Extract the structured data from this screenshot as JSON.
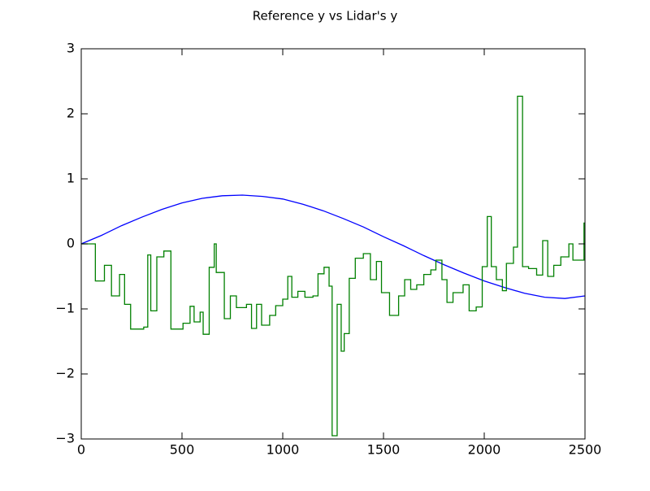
{
  "chart_data": {
    "type": "line",
    "title": "Reference y vs Lidar's y",
    "xlim": [
      0,
      2500
    ],
    "xticks": [
      0,
      500,
      1000,
      1500,
      2000,
      2500
    ],
    "ylim": [
      -3,
      3
    ],
    "yticks": [
      {
        "value": -3,
        "label": "−3"
      },
      {
        "value": -2,
        "label": "−2"
      },
      {
        "value": -1,
        "label": "−1"
      },
      0,
      1,
      2,
      3
    ],
    "grid": false,
    "series": [
      {
        "color": "#0000ff",
        "drawstyle": "default",
        "x": [
          0,
          100,
          200,
          300,
          400,
          500,
          600,
          700,
          800,
          900,
          1000,
          1100,
          1200,
          1300,
          1400,
          1500,
          1600,
          1700,
          1800,
          1900,
          2000,
          2100,
          2200,
          2300,
          2400,
          2500
        ],
        "values": [
          0.0,
          0.13,
          0.28,
          0.41,
          0.53,
          0.63,
          0.7,
          0.74,
          0.75,
          0.73,
          0.69,
          0.61,
          0.51,
          0.39,
          0.26,
          0.11,
          -0.03,
          -0.18,
          -0.32,
          -0.45,
          -0.57,
          -0.67,
          -0.76,
          -0.82,
          -0.84,
          -0.8
        ]
      },
      {
        "color": "#008000",
        "drawstyle": "steps-post",
        "x": [
          0,
          70,
          115,
          150,
          190,
          215,
          245,
          310,
          330,
          345,
          375,
          410,
          445,
          505,
          540,
          560,
          590,
          605,
          635,
          660,
          670,
          710,
          740,
          770,
          820,
          845,
          870,
          895,
          935,
          965,
          1000,
          1025,
          1045,
          1075,
          1110,
          1150,
          1175,
          1205,
          1230,
          1245,
          1270,
          1290,
          1305,
          1330,
          1360,
          1400,
          1435,
          1465,
          1490,
          1530,
          1575,
          1605,
          1635,
          1665,
          1700,
          1735,
          1760,
          1790,
          1815,
          1845,
          1895,
          1925,
          1960,
          1990,
          2015,
          2035,
          2060,
          2090,
          2110,
          2145,
          2165,
          2190,
          2220,
          2260,
          2290,
          2315,
          2345,
          2380,
          2420,
          2440,
          2495,
          2500
        ],
        "values": [
          0.0,
          -0.57,
          -0.33,
          -0.8,
          -0.47,
          -0.93,
          -1.31,
          -1.28,
          -0.17,
          -1.03,
          -0.2,
          -0.11,
          -1.31,
          -1.22,
          -0.96,
          -1.2,
          -1.05,
          -1.39,
          -0.36,
          0.0,
          -0.44,
          -1.15,
          -0.8,
          -0.98,
          -0.93,
          -1.3,
          -0.93,
          -1.25,
          -1.1,
          -0.95,
          -0.85,
          -0.5,
          -0.82,
          -0.73,
          -0.82,
          -0.8,
          -0.46,
          -0.36,
          -0.65,
          -2.95,
          -0.93,
          -1.65,
          -1.38,
          -0.53,
          -0.22,
          -0.15,
          -0.55,
          -0.27,
          -0.75,
          -1.1,
          -0.8,
          -0.55,
          -0.7,
          -0.63,
          -0.47,
          -0.4,
          -0.25,
          -0.55,
          -0.9,
          -0.75,
          -0.63,
          -1.03,
          -0.97,
          -0.35,
          0.42,
          -0.35,
          -0.55,
          -0.72,
          -0.3,
          -0.05,
          2.27,
          -0.35,
          -0.38,
          -0.48,
          0.05,
          -0.5,
          -0.33,
          -0.2,
          0.0,
          -0.25,
          0.32,
          0.32
        ]
      }
    ]
  }
}
